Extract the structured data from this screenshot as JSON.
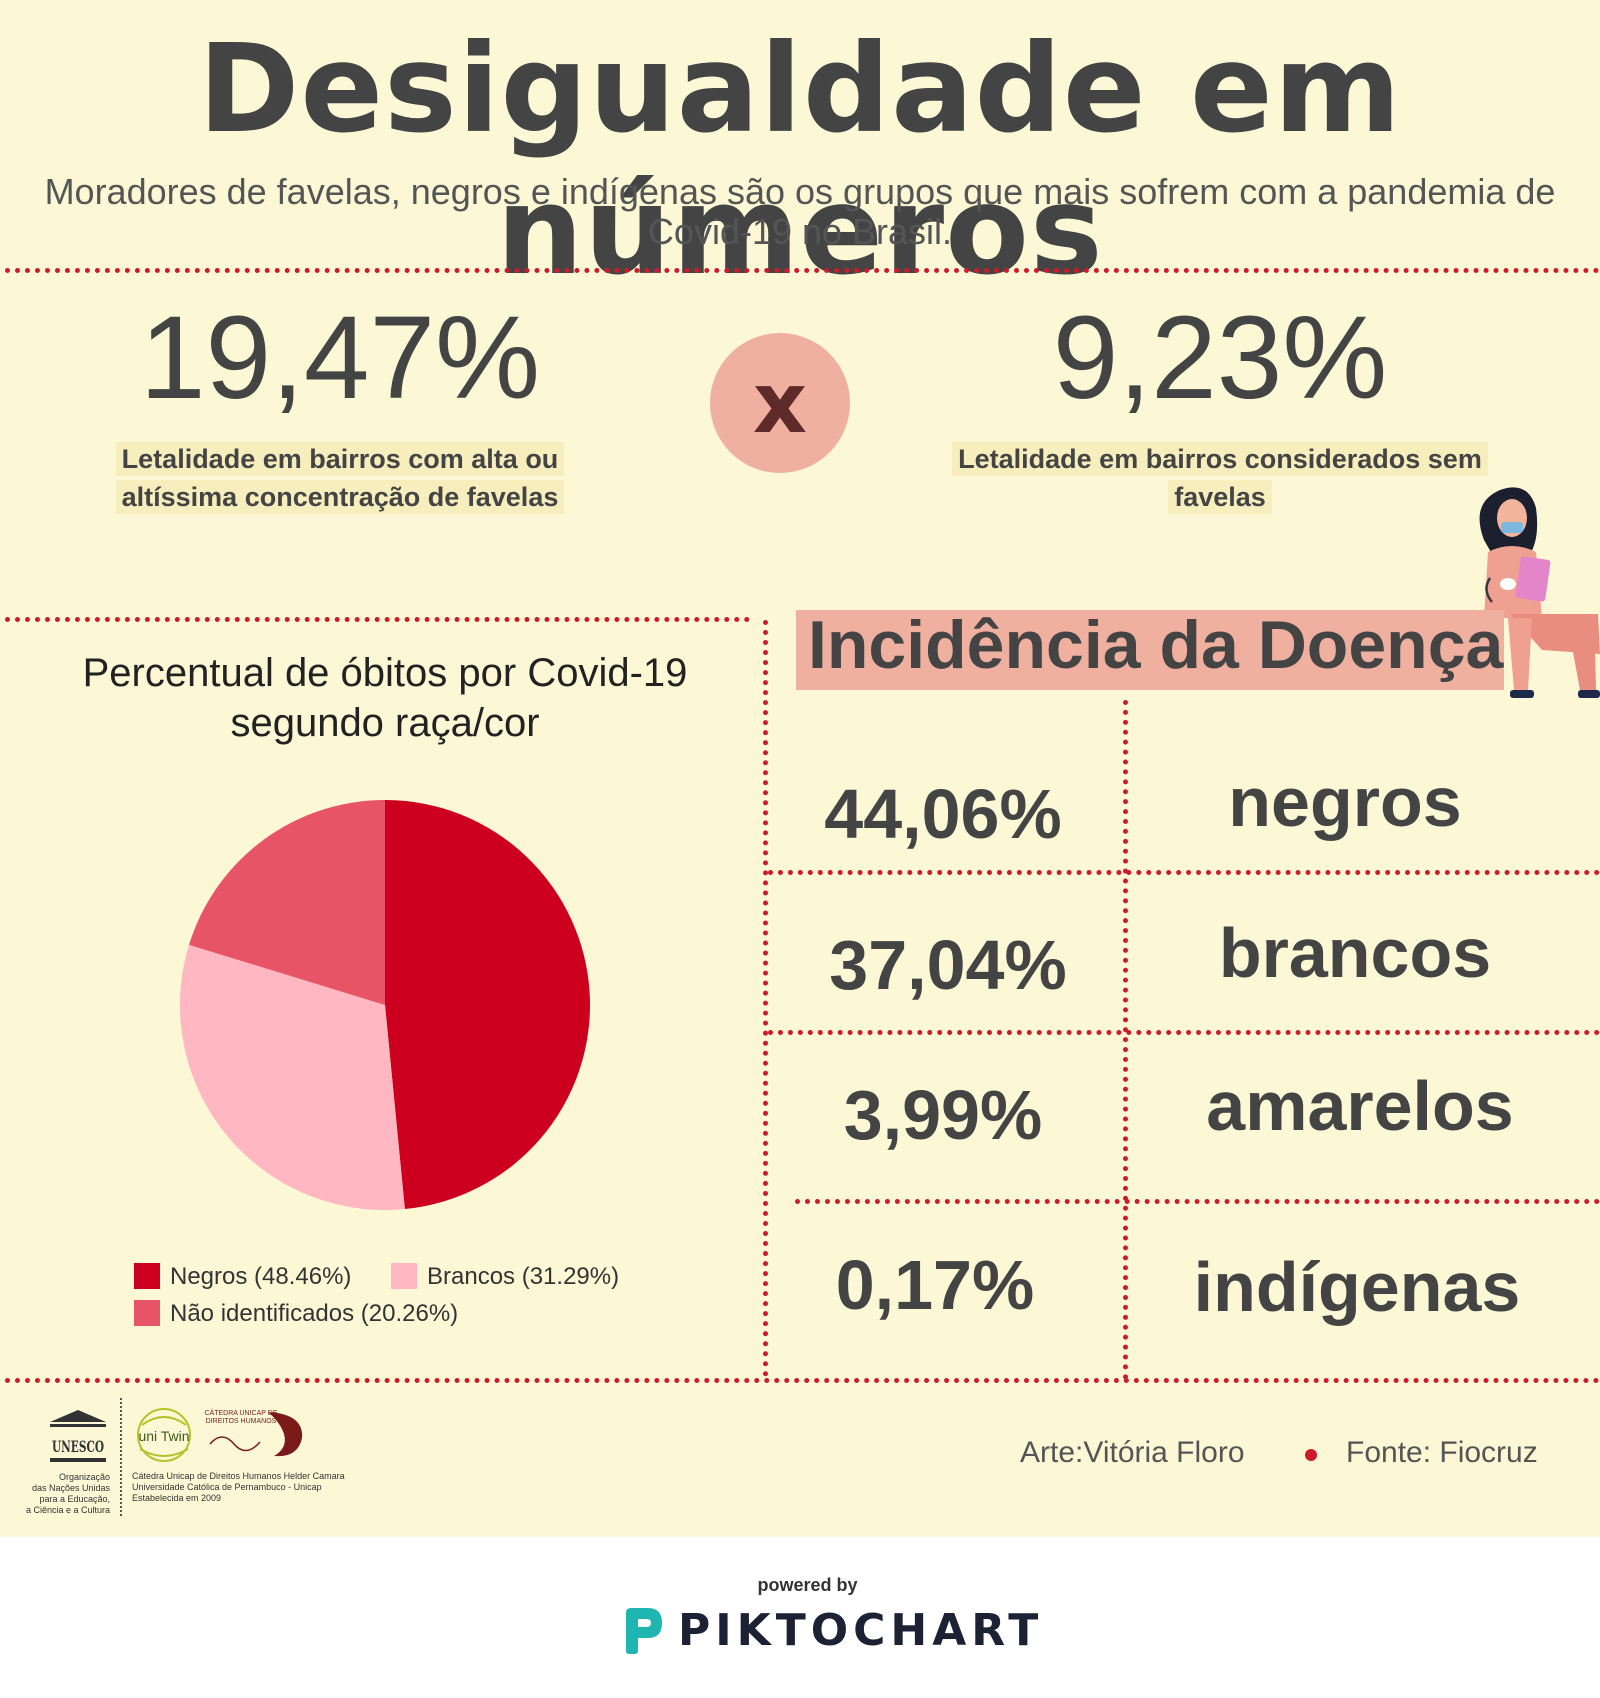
{
  "title": "Desigualdade em números",
  "subtitle": "Moradores de favelas, negros e indígenas são os grupos que mais sofrem com a pandemia de Covid-19 no Brasil.",
  "comparison": {
    "left_value": "19,47%",
    "left_label_line1": "Letalidade em bairros com alta ou",
    "left_label_line2": "altíssima concentração de favelas",
    "vs": "x",
    "right_value": "9,23%",
    "right_label_line1": "Letalidade em bairros considerados sem",
    "right_label_line2": "favelas"
  },
  "chart_data": {
    "type": "pie",
    "title": "Percentual de óbitos por Covid-19 segundo raça/cor",
    "slices": [
      {
        "label": "Negros (48.46%)",
        "value": 48.46,
        "color": "#cc001e"
      },
      {
        "label": "Brancos (31.29%)",
        "value": 31.29,
        "color": "#ffb7c1"
      },
      {
        "label": "Não identificados (20.26%)",
        "value": 20.26,
        "color": "#e85467"
      }
    ],
    "legend_position": "bottom"
  },
  "incidence": {
    "title": "Incidência da Doença",
    "rows": [
      {
        "percent": "44,06%",
        "group": "negros"
      },
      {
        "percent": "37,04%",
        "group": "brancos"
      },
      {
        "percent": "3,99%",
        "group": "amarelos"
      },
      {
        "percent": "0,17%",
        "group": "indígenas"
      }
    ]
  },
  "footer": {
    "unesco_word": "UNESCO",
    "unesco_text": [
      "Organização",
      "das Nações Unidas",
      "para a Educação,",
      "a Ciência e a Cultura"
    ],
    "unitwin_text": [
      "Cátedra Unicap de Direitos Humanos Helder Camara",
      "Universidade Católica de Pernambuco - Unicap",
      "Estabelecida em 2009"
    ],
    "catedra_small": [
      "CÁTEDRA UNICAP DE",
      "DIREITOS HUMANOS"
    ],
    "art_credit": "Arte:Vitória Floro",
    "source_credit": "Fonte: Fiocruz"
  },
  "powered": {
    "label": "powered by",
    "brand": "PIKTOCHART"
  },
  "colors": {
    "background": "#fcf8d6",
    "divider": "#cc1b2b",
    "accent_pink": "#efb0a0",
    "highlight": "#f6efbd"
  }
}
